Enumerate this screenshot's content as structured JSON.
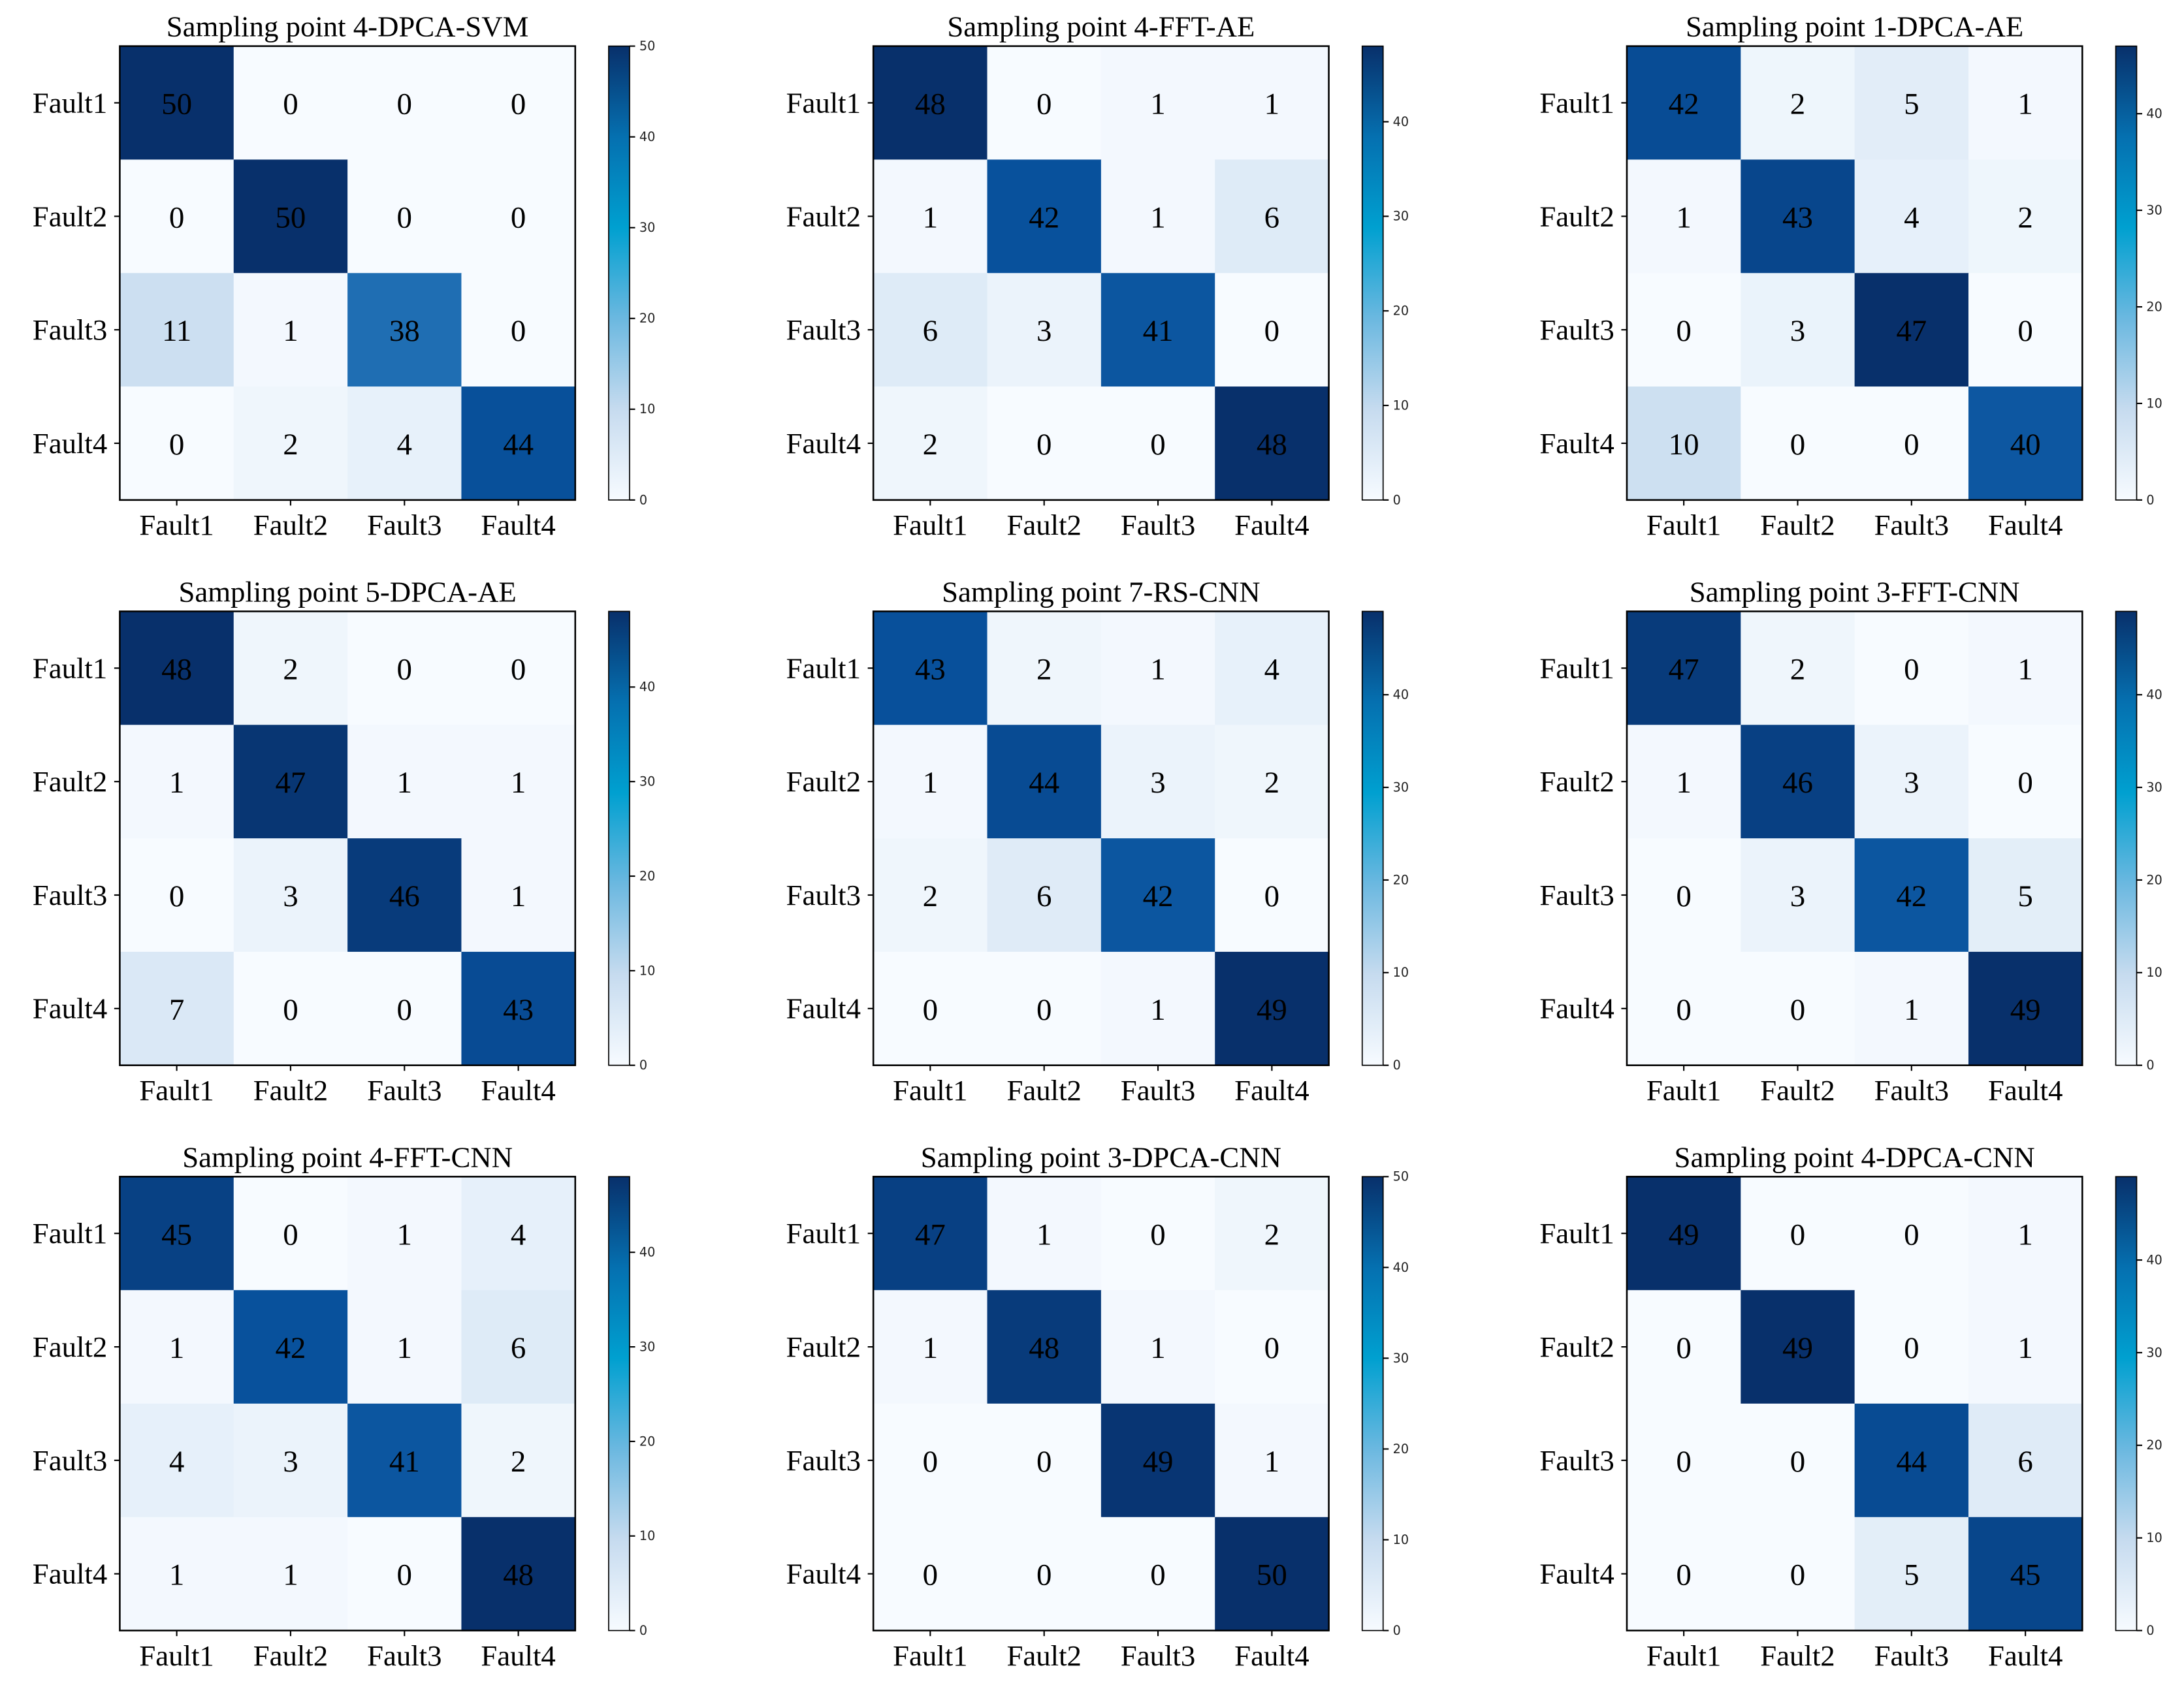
{
  "chart_data": [
    {
      "type": "heatmap",
      "title": "Sampling point 4-DPCA-SVM",
      "row_labels": [
        "Fault1",
        "Fault2",
        "Fault3",
        "Fault4"
      ],
      "col_labels": [
        "Fault1",
        "Fault2",
        "Fault3",
        "Fault4"
      ],
      "values": [
        [
          50,
          0,
          0,
          0
        ],
        [
          0,
          50,
          0,
          0
        ],
        [
          11,
          1,
          38,
          0
        ],
        [
          0,
          2,
          4,
          44
        ]
      ],
      "colorbar": {
        "range": [
          0,
          50
        ],
        "ticks": [
          0,
          10,
          20,
          30,
          40,
          50
        ]
      }
    },
    {
      "type": "heatmap",
      "title": "Sampling point 4-FFT-AE",
      "row_labels": [
        "Fault1",
        "Fault2",
        "Fault3",
        "Fault4"
      ],
      "col_labels": [
        "Fault1",
        "Fault2",
        "Fault3",
        "Fault4"
      ],
      "values": [
        [
          48,
          0,
          1,
          1
        ],
        [
          1,
          42,
          1,
          6
        ],
        [
          6,
          3,
          41,
          0
        ],
        [
          2,
          0,
          0,
          48
        ]
      ],
      "colorbar": {
        "range": [
          0,
          48
        ],
        "ticks": [
          0,
          10,
          20,
          30,
          40
        ]
      }
    },
    {
      "type": "heatmap",
      "title": "Sampling point 1-DPCA-AE",
      "row_labels": [
        "Fault1",
        "Fault2",
        "Fault3",
        "Fault4"
      ],
      "col_labels": [
        "Fault1",
        "Fault2",
        "Fault3",
        "Fault4"
      ],
      "values": [
        [
          42,
          2,
          5,
          1
        ],
        [
          1,
          43,
          4,
          2
        ],
        [
          0,
          3,
          47,
          0
        ],
        [
          10,
          0,
          0,
          40
        ]
      ],
      "colorbar": {
        "range": [
          0,
          47
        ],
        "ticks": [
          0,
          10,
          20,
          30,
          40
        ]
      }
    },
    {
      "type": "heatmap",
      "title": "Sampling point 5-DPCA-AE",
      "row_labels": [
        "Fault1",
        "Fault2",
        "Fault3",
        "Fault4"
      ],
      "col_labels": [
        "Fault1",
        "Fault2",
        "Fault3",
        "Fault4"
      ],
      "values": [
        [
          48,
          2,
          0,
          0
        ],
        [
          1,
          47,
          1,
          1
        ],
        [
          0,
          3,
          46,
          1
        ],
        [
          7,
          0,
          0,
          43
        ]
      ],
      "colorbar": {
        "range": [
          0,
          48
        ],
        "ticks": [
          0,
          10,
          20,
          30,
          40
        ]
      }
    },
    {
      "type": "heatmap",
      "title": "Sampling point 7-RS-CNN",
      "row_labels": [
        "Fault1",
        "Fault2",
        "Fault3",
        "Fault4"
      ],
      "col_labels": [
        "Fault1",
        "Fault2",
        "Fault3",
        "Fault4"
      ],
      "values": [
        [
          43,
          2,
          1,
          4
        ],
        [
          1,
          44,
          3,
          2
        ],
        [
          2,
          6,
          42,
          0
        ],
        [
          0,
          0,
          1,
          49
        ]
      ],
      "colorbar": {
        "range": [
          0,
          49
        ],
        "ticks": [
          0,
          10,
          20,
          30,
          40
        ]
      }
    },
    {
      "type": "heatmap",
      "title": "Sampling point 3-FFT-CNN",
      "row_labels": [
        "Fault1",
        "Fault2",
        "Fault3",
        "Fault4"
      ],
      "col_labels": [
        "Fault1",
        "Fault2",
        "Fault3",
        "Fault4"
      ],
      "values": [
        [
          47,
          2,
          0,
          1
        ],
        [
          1,
          46,
          3,
          0
        ],
        [
          0,
          3,
          42,
          5
        ],
        [
          0,
          0,
          1,
          49
        ]
      ],
      "colorbar": {
        "range": [
          0,
          49
        ],
        "ticks": [
          0,
          10,
          20,
          30,
          40
        ]
      }
    },
    {
      "type": "heatmap",
      "title": "Sampling point 4-FFT-CNN",
      "row_labels": [
        "Fault1",
        "Fault2",
        "Fault3",
        "Fault4"
      ],
      "col_labels": [
        "Fault1",
        "Fault2",
        "Fault3",
        "Fault4"
      ],
      "values": [
        [
          45,
          0,
          1,
          4
        ],
        [
          1,
          42,
          1,
          6
        ],
        [
          4,
          3,
          41,
          2
        ],
        [
          1,
          1,
          0,
          48
        ]
      ],
      "colorbar": {
        "range": [
          0,
          48
        ],
        "ticks": [
          0,
          10,
          20,
          30,
          40
        ]
      }
    },
    {
      "type": "heatmap",
      "title": "Sampling point 3-DPCA-CNN",
      "row_labels": [
        "Fault1",
        "Fault2",
        "Fault3",
        "Fault4"
      ],
      "col_labels": [
        "Fault1",
        "Fault2",
        "Fault3",
        "Fault4"
      ],
      "values": [
        [
          47,
          1,
          0,
          2
        ],
        [
          1,
          48,
          1,
          0
        ],
        [
          0,
          0,
          49,
          1
        ],
        [
          0,
          0,
          0,
          50
        ]
      ],
      "colorbar": {
        "range": [
          0,
          50
        ],
        "ticks": [
          0,
          10,
          20,
          30,
          40,
          50
        ]
      }
    },
    {
      "type": "heatmap",
      "title": "Sampling point 4-DPCA-CNN",
      "row_labels": [
        "Fault1",
        "Fault2",
        "Fault3",
        "Fault4"
      ],
      "col_labels": [
        "Fault1",
        "Fault2",
        "Fault3",
        "Fault4"
      ],
      "values": [
        [
          49,
          0,
          0,
          1
        ],
        [
          0,
          49,
          0,
          1
        ],
        [
          0,
          0,
          44,
          6
        ],
        [
          0,
          0,
          5,
          45
        ]
      ],
      "colorbar": {
        "range": [
          0,
          49
        ],
        "ticks": [
          0,
          10,
          20,
          30,
          40
        ]
      }
    }
  ],
  "colormap": "Blues"
}
